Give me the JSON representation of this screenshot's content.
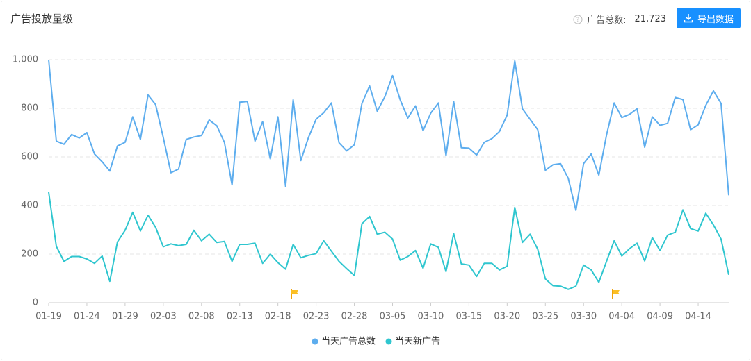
{
  "header": {
    "title": "广告投放量级",
    "total_label": "广告总数:",
    "total_value": "21,723",
    "export_button": "导出数据"
  },
  "chart_data": {
    "type": "line",
    "categories": [
      "01-19",
      null,
      null,
      null,
      null,
      "01-24",
      null,
      null,
      null,
      null,
      "01-29",
      null,
      null,
      null,
      null,
      "02-03",
      null,
      null,
      null,
      null,
      "02-08",
      null,
      null,
      null,
      null,
      "02-13",
      null,
      null,
      null,
      null,
      "02-18",
      null,
      null,
      null,
      null,
      "02-23",
      null,
      null,
      null,
      null,
      "02-28",
      null,
      null,
      null,
      null,
      "03-05",
      null,
      null,
      null,
      null,
      "03-10",
      null,
      null,
      null,
      null,
      "03-15",
      null,
      null,
      null,
      null,
      "03-20",
      null,
      null,
      null,
      null,
      "03-25",
      null,
      null,
      null,
      null,
      "03-30",
      null,
      null,
      null,
      null,
      "04-04",
      null,
      null,
      null,
      null,
      "04-09",
      null,
      null,
      null,
      null,
      "04-14",
      null,
      null,
      null,
      null
    ],
    "series": [
      {
        "name": "当天广告总数",
        "color": "#5dadee",
        "values": [
          1000,
          665,
          652,
          692,
          678,
          700,
          612,
          580,
          542,
          645,
          660,
          765,
          672,
          855,
          815,
          680,
          535,
          550,
          672,
          682,
          688,
          752,
          728,
          660,
          485,
          825,
          828,
          665,
          745,
          592,
          765,
          478,
          835,
          585,
          680,
          755,
          782,
          822,
          658,
          625,
          650,
          820,
          892,
          788,
          848,
          935,
          835,
          760,
          810,
          708,
          780,
          822,
          605,
          828,
          638,
          636,
          608,
          660,
          675,
          705,
          772,
          995,
          798,
          755,
          712,
          545,
          568,
          572,
          512,
          380,
          572,
          612,
          525,
          690,
          822,
          762,
          775,
          798,
          640,
          765,
          730,
          738,
          845,
          836,
          712,
          732,
          812,
          872,
          820,
          442
        ]
      },
      {
        "name": "当天新广告",
        "color": "#2fc6cf",
        "values": [
          455,
          232,
          170,
          190,
          190,
          180,
          162,
          192,
          88,
          250,
          298,
          372,
          295,
          360,
          310,
          230,
          242,
          235,
          240,
          298,
          255,
          282,
          248,
          252,
          170,
          240,
          240,
          245,
          162,
          200,
          165,
          138,
          240,
          185,
          195,
          202,
          255,
          212,
          170,
          140,
          112,
          325,
          355,
          282,
          290,
          262,
          175,
          190,
          215,
          142,
          242,
          228,
          128,
          285,
          160,
          155,
          108,
          162,
          162,
          135,
          150,
          392,
          248,
          282,
          220,
          98,
          70,
          68,
          55,
          68,
          155,
          135,
          84,
          170,
          255,
          192,
          222,
          245,
          172,
          268,
          215,
          278,
          290,
          382,
          305,
          295,
          368,
          320,
          262,
          115
        ]
      }
    ],
    "ylim": [
      0,
      1000
    ],
    "yticks": [
      0,
      200,
      400,
      600,
      800,
      {
        "value": 1000,
        "label": "1,000"
      }
    ],
    "grid": true,
    "legend": "bottom"
  }
}
